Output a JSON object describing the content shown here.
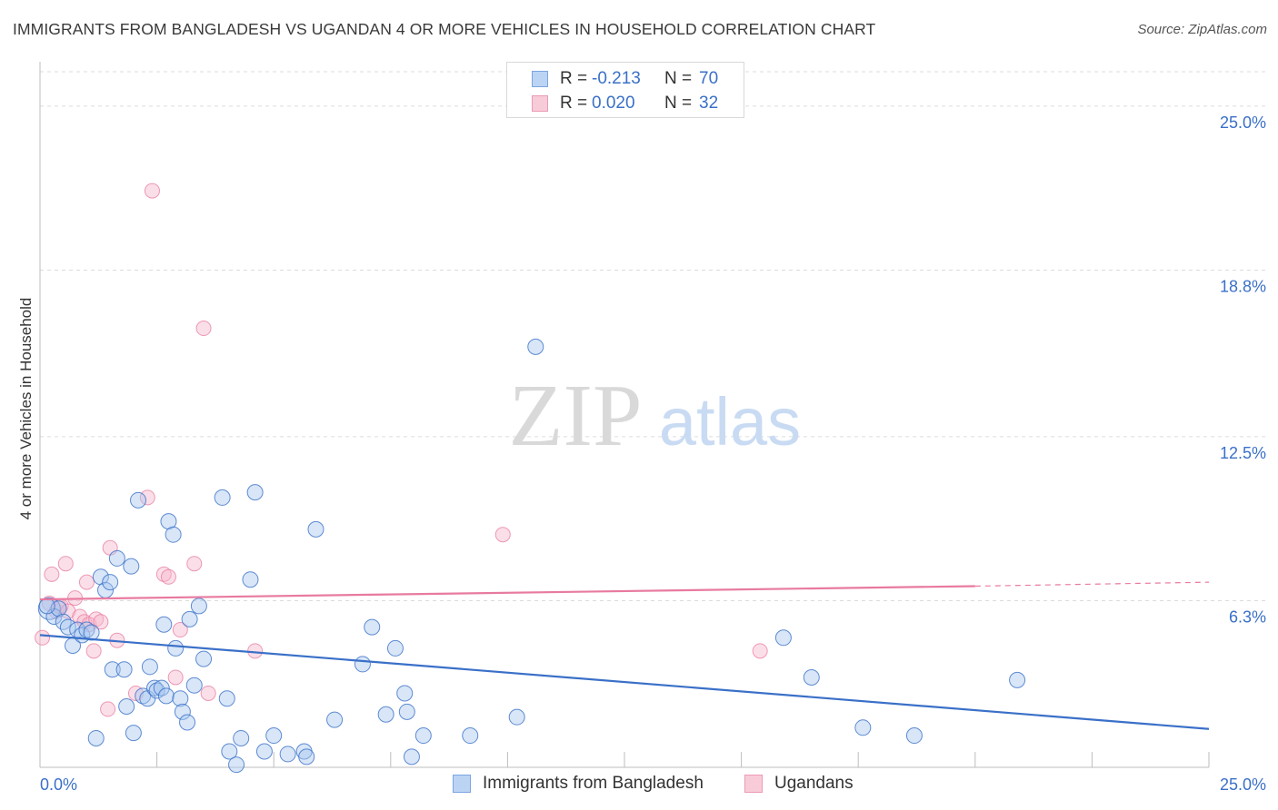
{
  "title": "IMMIGRANTS FROM BANGLADESH VS UGANDAN 4 OR MORE VEHICLES IN HOUSEHOLD CORRELATION CHART",
  "source": "Source: ZipAtlas.com",
  "watermark": {
    "zip": "ZIP",
    "atlas": "atlas"
  },
  "colors": {
    "blue": "#3a70c8",
    "blue_fill": "#a9c8f0",
    "pink": "#e87aa0",
    "pink_fill": "#f6b8cc",
    "grid": "#dcdcdc",
    "tick_text": "#3a70c8"
  },
  "stat_legend": {
    "rows": [
      {
        "r_label": "R =",
        "r_value": "-0.213",
        "n_label": "N =",
        "n_value": "70"
      },
      {
        "r_label": "R =",
        "r_value": "0.020",
        "n_label": "N =",
        "n_value": "32"
      }
    ]
  },
  "chart_data": {
    "type": "scatter",
    "title": "IMMIGRANTS FROM BANGLADESH VS UGANDAN 4 OR MORE VEHICLES IN HOUSEHOLD CORRELATION CHART",
    "xlabel": "",
    "ylabel": "4 or more Vehicles in Household",
    "xlim": [
      0,
      25
    ],
    "ylim": [
      0,
      26.3
    ],
    "x_tick_labels": [
      "0.0%",
      "25.0%"
    ],
    "y_ticks": [
      6.3,
      12.5,
      18.8,
      25.0
    ],
    "y_tick_labels": [
      "6.3%",
      "12.5%",
      "18.8%",
      "25.0%"
    ],
    "grid": true,
    "legend_position": "bottom",
    "series": [
      {
        "name": "Immigrants from Bangladesh",
        "color": "#3a70c8",
        "R": -0.213,
        "N": 70,
        "trend": {
          "x": [
            0,
            25
          ],
          "y": [
            5.0,
            1.45
          ]
        },
        "points": [
          [
            0.2,
            6.0
          ],
          [
            0.3,
            5.7
          ],
          [
            0.4,
            6.0
          ],
          [
            0.5,
            5.5
          ],
          [
            0.6,
            5.3
          ],
          [
            0.7,
            4.6
          ],
          [
            0.8,
            5.2
          ],
          [
            0.9,
            5.0
          ],
          [
            1.0,
            5.2
          ],
          [
            1.1,
            5.1
          ],
          [
            1.2,
            1.1
          ],
          [
            1.3,
            7.2
          ],
          [
            1.4,
            6.7
          ],
          [
            1.5,
            7.0
          ],
          [
            1.55,
            3.7
          ],
          [
            1.65,
            7.9
          ],
          [
            1.8,
            3.7
          ],
          [
            1.85,
            2.3
          ],
          [
            1.95,
            7.6
          ],
          [
            2.0,
            1.3
          ],
          [
            2.1,
            10.1
          ],
          [
            2.2,
            2.7
          ],
          [
            2.3,
            2.6
          ],
          [
            2.35,
            3.8
          ],
          [
            2.45,
            3.0
          ],
          [
            2.5,
            2.9
          ],
          [
            2.6,
            3.0
          ],
          [
            2.65,
            5.4
          ],
          [
            2.7,
            2.7
          ],
          [
            2.75,
            9.3
          ],
          [
            2.85,
            8.8
          ],
          [
            2.9,
            4.5
          ],
          [
            3.0,
            2.6
          ],
          [
            3.05,
            2.1
          ],
          [
            3.15,
            1.7
          ],
          [
            3.2,
            5.6
          ],
          [
            3.3,
            3.1
          ],
          [
            3.4,
            6.1
          ],
          [
            3.5,
            4.1
          ],
          [
            3.9,
            10.2
          ],
          [
            4.0,
            2.6
          ],
          [
            4.05,
            0.6
          ],
          [
            4.2,
            0.1
          ],
          [
            4.3,
            1.1
          ],
          [
            4.5,
            7.1
          ],
          [
            4.6,
            10.4
          ],
          [
            4.8,
            0.6
          ],
          [
            5.0,
            1.2
          ],
          [
            5.3,
            0.5
          ],
          [
            5.65,
            0.6
          ],
          [
            5.7,
            0.4
          ],
          [
            5.9,
            9.0
          ],
          [
            6.3,
            1.8
          ],
          [
            6.9,
            3.9
          ],
          [
            7.1,
            5.3
          ],
          [
            7.4,
            2.0
          ],
          [
            7.6,
            4.5
          ],
          [
            7.8,
            2.8
          ],
          [
            7.85,
            2.1
          ],
          [
            7.95,
            0.4
          ],
          [
            8.2,
            1.2
          ],
          [
            9.2,
            1.2
          ],
          [
            10.2,
            1.9
          ],
          [
            10.6,
            15.9
          ],
          [
            15.9,
            4.9
          ],
          [
            16.5,
            3.4
          ],
          [
            17.6,
            1.5
          ],
          [
            18.7,
            1.2
          ],
          [
            20.9,
            3.3
          ],
          [
            0.15,
            6.1
          ]
        ]
      },
      {
        "name": "Ugandans",
        "color": "#e87aa0",
        "R": 0.02,
        "N": 32,
        "trend": {
          "x": [
            0,
            20
          ],
          "y": [
            6.35,
            6.85
          ]
        },
        "trend_dashed": {
          "x": [
            20,
            25
          ],
          "y": [
            6.85,
            7.0
          ]
        },
        "points": [
          [
            0.05,
            4.9
          ],
          [
            0.2,
            6.2
          ],
          [
            0.25,
            7.3
          ],
          [
            0.35,
            5.9
          ],
          [
            0.4,
            6.1
          ],
          [
            0.45,
            6.1
          ],
          [
            0.55,
            7.7
          ],
          [
            0.6,
            5.9
          ],
          [
            0.75,
            6.4
          ],
          [
            0.85,
            5.7
          ],
          [
            0.95,
            5.5
          ],
          [
            1.0,
            7.0
          ],
          [
            1.05,
            5.4
          ],
          [
            1.15,
            4.4
          ],
          [
            1.2,
            5.6
          ],
          [
            1.3,
            5.5
          ],
          [
            1.45,
            2.2
          ],
          [
            1.5,
            8.3
          ],
          [
            1.65,
            4.8
          ],
          [
            2.05,
            2.8
          ],
          [
            2.3,
            10.2
          ],
          [
            2.4,
            21.8
          ],
          [
            2.65,
            7.3
          ],
          [
            2.75,
            7.2
          ],
          [
            2.9,
            3.4
          ],
          [
            3.0,
            5.2
          ],
          [
            3.3,
            7.7
          ],
          [
            3.5,
            16.6
          ],
          [
            3.6,
            2.8
          ],
          [
            4.6,
            4.4
          ],
          [
            9.9,
            8.8
          ],
          [
            15.4,
            4.4
          ]
        ]
      }
    ]
  },
  "bottom_legend": [
    {
      "label": "Immigrants from Bangladesh"
    },
    {
      "label": "Ugandans"
    }
  ]
}
